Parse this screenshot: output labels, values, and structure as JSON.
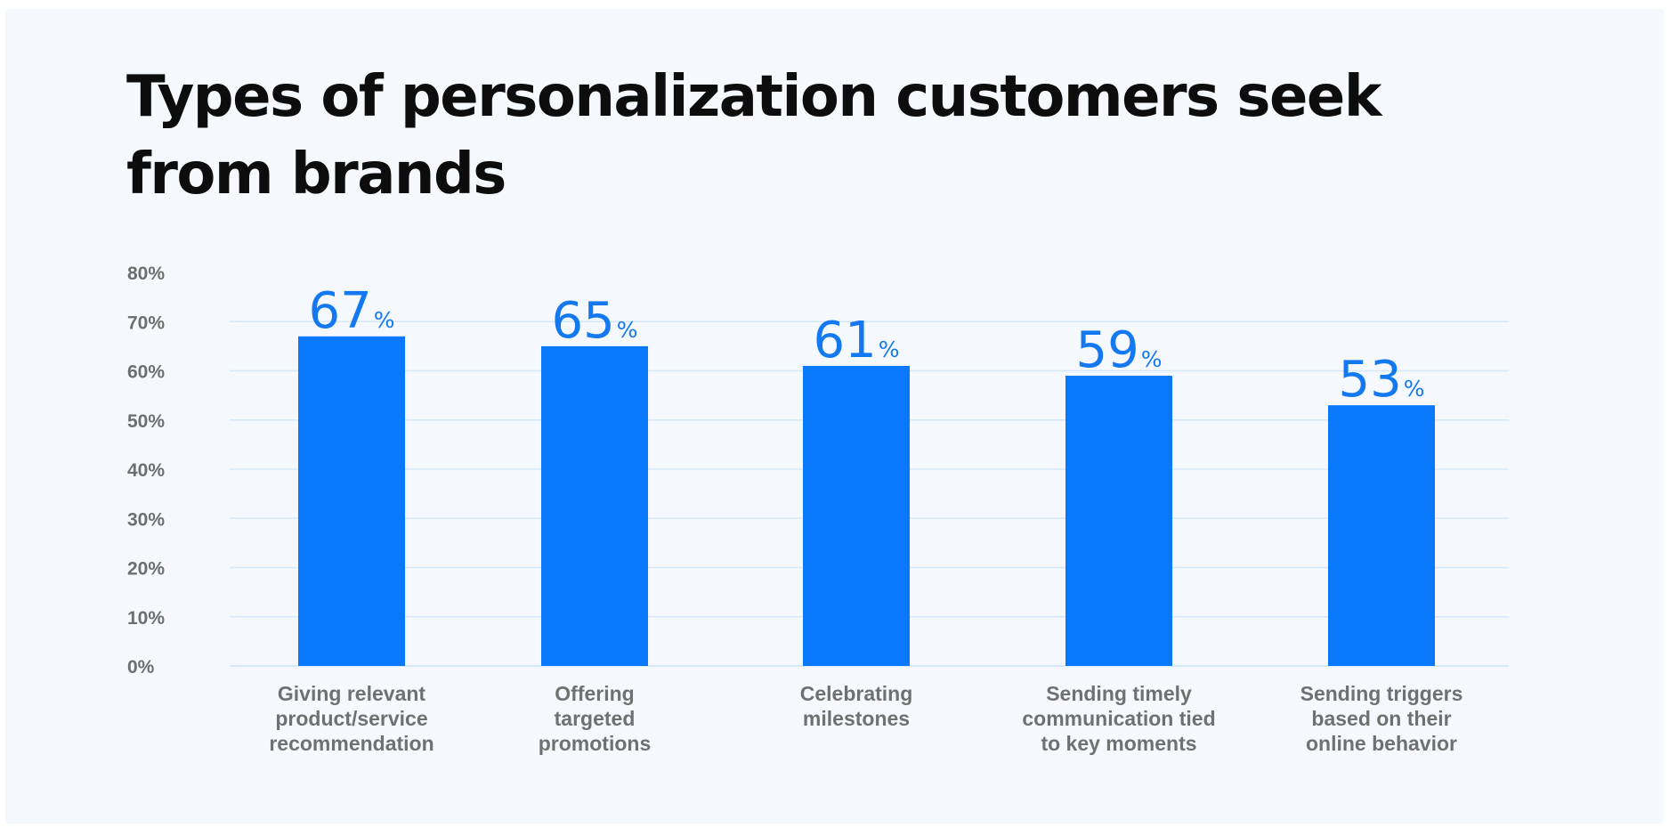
{
  "title_lines": [
    "Types of personalization customers seek",
    "from brands"
  ],
  "colors": {
    "background": "#f5f9fd",
    "bar": "#0a78fa",
    "value_label": "#1479f0",
    "gridline": "#d6e8fb",
    "axis_text": "#6e6e6e"
  },
  "chart_data": {
    "type": "bar",
    "title": "Types of personalization customers seek from brands",
    "xlabel": "",
    "ylabel": "",
    "ylim": [
      0,
      80
    ],
    "yticks": [
      0,
      10,
      20,
      30,
      40,
      50,
      60,
      70,
      80
    ],
    "ytick_labels": [
      "0%",
      "10%",
      "20%",
      "30%",
      "40%",
      "50%",
      "60%",
      "70%",
      "80%"
    ],
    "grid": true,
    "legend": "none",
    "categories": [
      [
        "Giving relevant",
        "product/service",
        "recommendation"
      ],
      [
        "Offering",
        "targeted",
        "promotions"
      ],
      [
        "Celebrating",
        "milestones"
      ],
      [
        "Sending timely",
        "communication tied",
        "to key moments"
      ],
      [
        "Sending triggers",
        "based on their",
        "online behavior"
      ]
    ],
    "values": [
      67,
      65,
      61,
      59,
      53
    ],
    "value_suffix": "%"
  }
}
